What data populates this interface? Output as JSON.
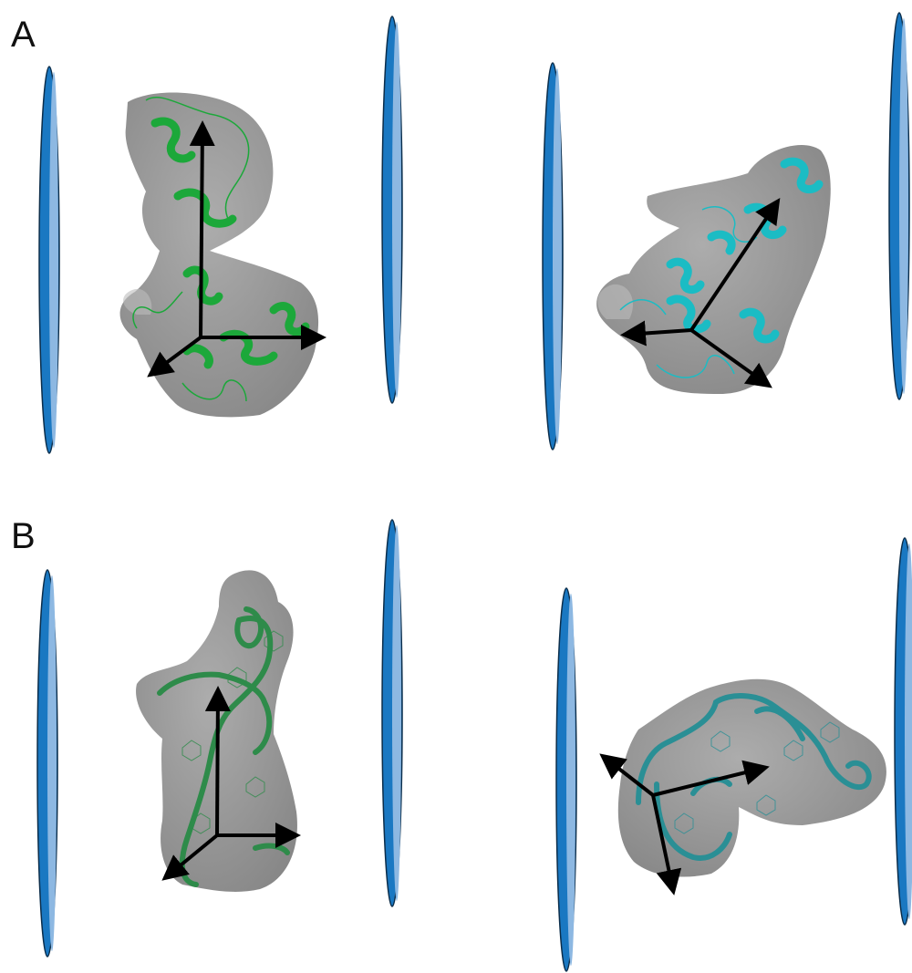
{
  "panels": [
    {
      "label": "A"
    },
    {
      "label": "B"
    }
  ],
  "colors": {
    "plate_dark": "#1a78c2",
    "plate_light": "#8db8e2",
    "plate_edge": "#0b2d4a",
    "surface": "#8a8a8a",
    "protein_green": "#1ca83a",
    "protein_cyan": "#1bbcc4",
    "rna_green": "#2e8b4a",
    "rna_teal": "#2a8f95",
    "arrow": "#000000"
  },
  "icons": [
    "membrane-plate-icon",
    "axes-arrow-icon"
  ]
}
